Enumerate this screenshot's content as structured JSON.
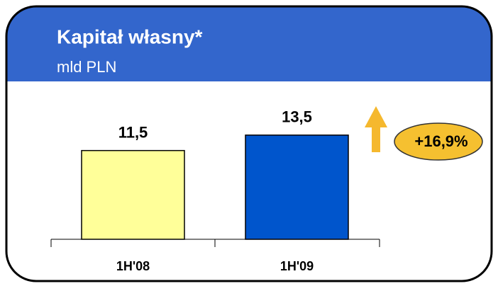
{
  "chart_data": {
    "type": "bar",
    "title": "Kapitał własny*",
    "subtitle": "mld PLN",
    "categories": [
      "1H'08",
      "1H'09"
    ],
    "values": [
      11.5,
      13.5
    ],
    "value_labels": [
      "11,5",
      "13,5"
    ],
    "colors": [
      "#ffff99",
      "#0055cc"
    ],
    "annotation": "+16,9%"
  }
}
